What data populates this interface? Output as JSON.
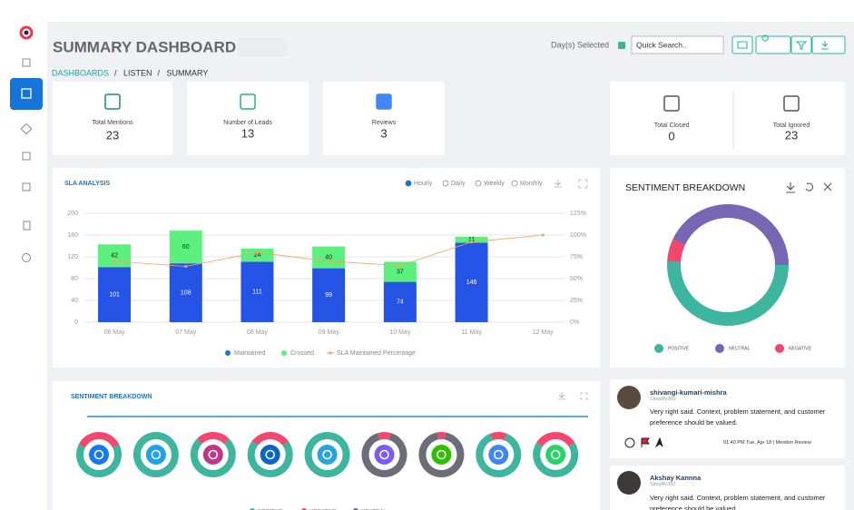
{
  "header": {
    "title": "SUMMARY DASHBOARD",
    "days_label": "Day(s) Selected",
    "search_placeholder": "Quick Search.."
  },
  "breadcrumb": {
    "items": [
      "DASHBOARDS",
      "LISTEN",
      "SUMMARY"
    ],
    "separator": "/"
  },
  "stats": [
    {
      "label": "Total Mentions",
      "value": 23
    },
    {
      "label": "Number of Leads",
      "value": 13
    },
    {
      "label": "Reviews",
      "value": 3
    },
    {
      "label": "Total Closed",
      "value": 0
    },
    {
      "label": "Total Ignored",
      "value": 23
    }
  ],
  "chart_data": [
    {
      "type": "bar",
      "stacked": true,
      "title": "SLA ANALYSIS",
      "options": [
        "Hourly",
        "Daily",
        "Weekly",
        "Monthly"
      ],
      "selected_option": 0,
      "categories": [
        "06 May",
        "07 May",
        "08 May",
        "09 May",
        "10 May",
        "11 May",
        "12 May"
      ],
      "series": [
        {
          "name": "Maintained",
          "color": "#2453e6",
          "values": [
            101,
            108,
            111,
            99,
            74,
            146,
            null
          ]
        },
        {
          "name": "Crossed",
          "color": "#5cf07d",
          "values": [
            42,
            60,
            24,
            40,
            37,
            11,
            null
          ]
        },
        {
          "name": "SLA Maintained Percentage",
          "color": "#f5a25d",
          "axis": "y2",
          "type": "line",
          "values": [
            70,
            64,
            80,
            70,
            65,
            92,
            100
          ]
        }
      ],
      "ylim": [
        0,
        200
      ],
      "yticks": [
        0,
        40,
        80,
        120,
        160,
        200
      ],
      "y2lim": [
        0,
        125
      ],
      "y2ticks": [
        {
          "value": 0,
          "label": "0%"
        },
        {
          "value": 25,
          "label": "25%"
        },
        {
          "value": 50,
          "label": "50%"
        },
        {
          "value": 75,
          "label": "75%"
        },
        {
          "value": 100,
          "label": "100%"
        },
        {
          "value": 125,
          "label": "125%"
        }
      ],
      "grid": true
    },
    {
      "type": "pie",
      "donut": true,
      "title": "SENTIMENT BREAKDOWN",
      "categories": [
        "POSITIVE",
        "NEUTRAL",
        "NEGATIVE"
      ],
      "values": [
        51,
        43,
        6
      ],
      "colors": [
        "#3db59f",
        "#7766b4",
        "#f2476f"
      ]
    },
    {
      "type": "donut_grid",
      "title": "SENTIMENT BREAKDOWN",
      "series": [
        {
          "name": "POSITIVE",
          "color": "#3db59f",
          "values": [
            65,
            100,
            75,
            70,
            100,
            0,
            0,
            88,
            68
          ]
        },
        {
          "name": "NEGATIVE",
          "color": "#f2476f",
          "values": [
            35,
            0,
            25,
            30,
            0,
            10,
            6,
            12,
            32
          ]
        },
        {
          "name": "NEUTRAL",
          "color": "#6b6d78",
          "values": [
            0,
            0,
            0,
            0,
            0,
            90,
            94,
            0,
            0
          ]
        }
      ]
    }
  ],
  "feed": {
    "posts": [
      {
        "author": "shivangi-kumari-mishra",
        "source": "Simplify360",
        "text": "Very right said. Context, problem statement, and customer preference should be valued.",
        "meta": "01:40 PM Tue, Apr 18 | Mention Review"
      },
      {
        "author": "Akshay Kannna",
        "source": "Simplify360",
        "text": "Very right said. Context, problem statement, and customer preference should be valued."
      }
    ]
  }
}
